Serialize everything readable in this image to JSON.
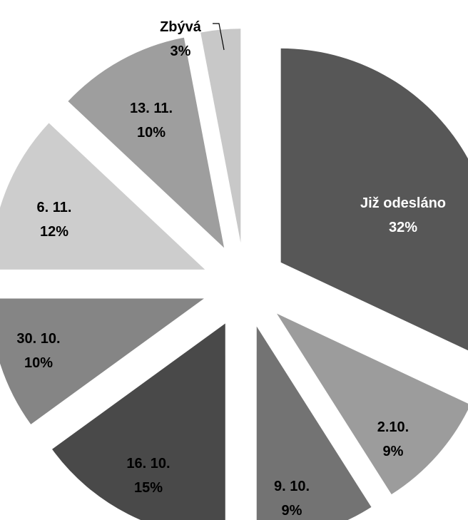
{
  "chart_data": {
    "type": "pie",
    "title": "",
    "exploded": true,
    "slices": [
      {
        "label": "Již odesláno",
        "value": 32,
        "value_label": "32%",
        "color": "#575757",
        "text_color": "#ffffff"
      },
      {
        "label": "2.10.",
        "value": 9,
        "value_label": "9%",
        "color": "#9c9c9c",
        "text_color": "#000000"
      },
      {
        "label": "9. 10.",
        "value": 9,
        "value_label": "9%",
        "color": "#737373",
        "text_color": "#000000"
      },
      {
        "label": "16. 10.",
        "value": 15,
        "value_label": "15%",
        "color": "#494949",
        "text_color": "#000000"
      },
      {
        "label": "30. 10.",
        "value": 10,
        "value_label": "10%",
        "color": "#858585",
        "text_color": "#000000"
      },
      {
        "label": "6. 11.",
        "value": 12,
        "value_label": "12%",
        "color": "#cdcdcd",
        "text_color": "#000000"
      },
      {
        "label": "13. 11.",
        "value": 10,
        "value_label": "10%",
        "color": "#9e9e9e",
        "text_color": "#000000"
      },
      {
        "label": "Zbývá",
        "value": 3,
        "value_label": "3%",
        "color": "#c8c8c8",
        "text_color": "#000000"
      }
    ]
  }
}
